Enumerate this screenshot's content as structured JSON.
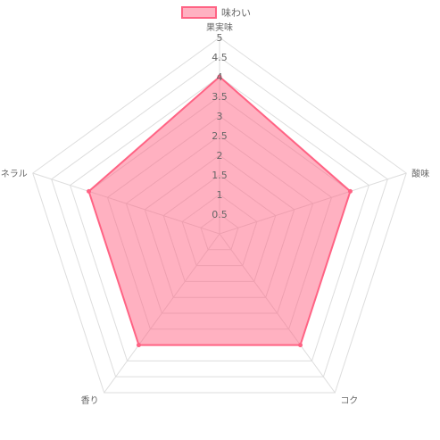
{
  "chart_data": {
    "type": "radar",
    "categories": [
      "果実味",
      "酸味",
      "コク",
      "香り",
      "ミネラル"
    ],
    "series": [
      {
        "name": "味わい",
        "values": [
          4,
          3.5,
          3.5,
          3.5,
          3.5
        ],
        "fill": "#ff6384",
        "fill_opacity": 0.5,
        "stroke": "#ff6384"
      }
    ],
    "rlim": [
      0,
      5
    ],
    "ticks": [
      "0.5",
      "1",
      "1.5",
      "2",
      "2.5",
      "3",
      "3.5",
      "4",
      "4.5",
      "5"
    ],
    "tick_values": [
      0.5,
      1,
      1.5,
      2,
      2.5,
      3,
      3.5,
      4,
      4.5,
      5
    ],
    "grid": true,
    "legend": "top"
  }
}
